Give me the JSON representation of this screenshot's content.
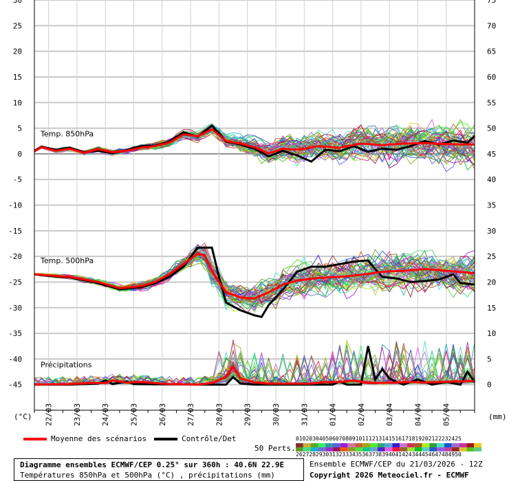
{
  "chart_data": {
    "type": "line",
    "title": "Diagramme ensembles ECMWF/CEP 0.25° sur 360h : 40.6N 22.9E",
    "subtitle": "Températures 850hPa et 500hPa (°C) , précipitations (mm)",
    "run_info": "Ensemble ECMWF/CEP du 21/03/2026 - 12Z",
    "copyright": "Copyright 2026 Meteociel.fr - ECMWF",
    "ylabel_left": "(°C)",
    "ylabel_right": "(mm)",
    "ylim_left": [
      -50,
      30
    ],
    "ylim_right": [
      -5,
      75
    ],
    "yticks_left": [
      30,
      25,
      20,
      15,
      10,
      5,
      0,
      -5,
      -10,
      -15,
      -20,
      -25,
      -30,
      -35,
      -40,
      -45
    ],
    "yticks_right": [
      75,
      70,
      65,
      60,
      55,
      50,
      45,
      40,
      35,
      30,
      25,
      20,
      15,
      10,
      5,
      0
    ],
    "date_labels": [
      "22/03",
      "23/03",
      "24/03",
      "25/03",
      "26/03",
      "27/03",
      "28/03",
      "29/03",
      "30/03",
      "31/03",
      "01/04",
      "02/04",
      "03/04",
      "04/04",
      "05/04"
    ],
    "x_start_hours": 0,
    "x_end_hours": 372,
    "step_hours": 6,
    "section_labels": [
      "Temp. 850hPa",
      "Temp. 500hPa",
      "Précipitations"
    ],
    "legend": {
      "mean": "Moyenne des scénarios",
      "control": "Contrôle/Det",
      "perts_label": "50 Perts.",
      "pert_numbers_top": "01020304050607080910111213141516171819202122232425",
      "pert_numbers_bottom": "26272829303132333435363738394041424344454647484950"
    },
    "series": [
      {
        "key": "t850",
        "axis": "left",
        "mean_keypoints": [
          [
            0,
            0.5
          ],
          [
            6,
            1.3
          ],
          [
            18,
            0.6
          ],
          [
            30,
            1.0
          ],
          [
            42,
            0.2
          ],
          [
            54,
            0.9
          ],
          [
            66,
            0.3
          ],
          [
            78,
            0.6
          ],
          [
            90,
            1.2
          ],
          [
            102,
            1.5
          ],
          [
            114,
            2.2
          ],
          [
            126,
            3.8
          ],
          [
            138,
            3.4
          ],
          [
            150,
            4.8
          ],
          [
            162,
            2.5
          ],
          [
            174,
            2.0
          ],
          [
            186,
            1.3
          ],
          [
            198,
            0.1
          ],
          [
            210,
            1.0
          ],
          [
            222,
            0.8
          ],
          [
            240,
            1.5
          ],
          [
            258,
            1.2
          ],
          [
            276,
            2.0
          ],
          [
            294,
            1.7
          ],
          [
            312,
            2.0
          ],
          [
            330,
            2.1
          ],
          [
            348,
            1.9
          ],
          [
            372,
            1.8
          ]
        ],
        "control_keypoints": [
          [
            0,
            0.6
          ],
          [
            6,
            1.4
          ],
          [
            18,
            0.8
          ],
          [
            30,
            1.2
          ],
          [
            42,
            0.3
          ],
          [
            54,
            0.6
          ],
          [
            66,
            0.1
          ],
          [
            78,
            0.7
          ],
          [
            90,
            1.5
          ],
          [
            102,
            1.6
          ],
          [
            114,
            2.4
          ],
          [
            126,
            4.2
          ],
          [
            138,
            3.3
          ],
          [
            150,
            5.5
          ],
          [
            162,
            2.4
          ],
          [
            174,
            1.8
          ],
          [
            186,
            1.0
          ],
          [
            198,
            -0.5
          ],
          [
            210,
            0.6
          ],
          [
            222,
            -0.3
          ],
          [
            234,
            -1.5
          ],
          [
            246,
            0.8
          ],
          [
            258,
            0.5
          ],
          [
            270,
            1.5
          ],
          [
            282,
            0.4
          ],
          [
            294,
            1.0
          ],
          [
            306,
            0.8
          ],
          [
            318,
            1.5
          ],
          [
            330,
            2.5
          ],
          [
            342,
            1.8
          ],
          [
            354,
            2.6
          ],
          [
            366,
            2.2
          ],
          [
            372,
            3.5
          ]
        ],
        "spread_keypoints": [
          [
            0,
            0.3
          ],
          [
            90,
            0.6
          ],
          [
            150,
            1.0
          ],
          [
            174,
            1.8
          ],
          [
            210,
            2.8
          ],
          [
            372,
            4.2
          ]
        ]
      },
      {
        "key": "t500",
        "axis": "left",
        "mean_keypoints": [
          [
            0,
            -23.5
          ],
          [
            12,
            -23.7
          ],
          [
            30,
            -24.0
          ],
          [
            54,
            -25.0
          ],
          [
            72,
            -26.2
          ],
          [
            90,
            -25.8
          ],
          [
            102,
            -25.0
          ],
          [
            114,
            -23.5
          ],
          [
            126,
            -21.5
          ],
          [
            138,
            -19.5
          ],
          [
            144,
            -19.8
          ],
          [
            150,
            -23.0
          ],
          [
            162,
            -27.0
          ],
          [
            174,
            -28.0
          ],
          [
            186,
            -28.2
          ],
          [
            198,
            -27.0
          ],
          [
            210,
            -25.5
          ],
          [
            222,
            -24.7
          ],
          [
            240,
            -24.2
          ],
          [
            258,
            -24.0
          ],
          [
            276,
            -23.6
          ],
          [
            294,
            -23.0
          ],
          [
            312,
            -22.8
          ],
          [
            330,
            -22.5
          ],
          [
            348,
            -22.8
          ],
          [
            372,
            -23.3
          ]
        ],
        "control_keypoints": [
          [
            0,
            -23.5
          ],
          [
            12,
            -23.8
          ],
          [
            30,
            -24.1
          ],
          [
            54,
            -25.2
          ],
          [
            72,
            -26.4
          ],
          [
            90,
            -26.0
          ],
          [
            102,
            -25.2
          ],
          [
            114,
            -24.0
          ],
          [
            126,
            -22.0
          ],
          [
            138,
            -18.3
          ],
          [
            150,
            -18.3
          ],
          [
            156,
            -24.0
          ],
          [
            162,
            -29.0
          ],
          [
            174,
            -30.5
          ],
          [
            186,
            -31.5
          ],
          [
            192,
            -31.8
          ],
          [
            198,
            -29.5
          ],
          [
            210,
            -26.5
          ],
          [
            222,
            -23.0
          ],
          [
            234,
            -22.0
          ],
          [
            246,
            -22.0
          ],
          [
            258,
            -21.5
          ],
          [
            270,
            -21.0
          ],
          [
            282,
            -20.8
          ],
          [
            288,
            -22.5
          ],
          [
            294,
            -24.0
          ],
          [
            306,
            -24.3
          ],
          [
            318,
            -25.0
          ],
          [
            330,
            -24.8
          ],
          [
            342,
            -24.5
          ],
          [
            354,
            -23.5
          ],
          [
            360,
            -25.2
          ],
          [
            372,
            -25.5
          ]
        ],
        "spread_keypoints": [
          [
            0,
            0.3
          ],
          [
            90,
            0.8
          ],
          [
            126,
            1.5
          ],
          [
            150,
            3.0
          ],
          [
            174,
            2.5
          ],
          [
            198,
            3.2
          ],
          [
            240,
            3.5
          ],
          [
            372,
            4.5
          ]
        ]
      },
      {
        "key": "precip",
        "axis": "right",
        "mean_keypoints": [
          [
            0,
            0.0
          ],
          [
            30,
            0.1
          ],
          [
            48,
            0.3
          ],
          [
            60,
            0.3
          ],
          [
            66,
            0.8
          ],
          [
            78,
            0.4
          ],
          [
            90,
            0.5
          ],
          [
            114,
            0.1
          ],
          [
            138,
            0.0
          ],
          [
            150,
            0.3
          ],
          [
            162,
            1.5
          ],
          [
            168,
            3.5
          ],
          [
            174,
            1.2
          ],
          [
            186,
            0.4
          ],
          [
            198,
            0.2
          ],
          [
            234,
            0.2
          ],
          [
            246,
            0.5
          ],
          [
            258,
            0.5
          ],
          [
            270,
            0.8
          ],
          [
            282,
            0.3
          ],
          [
            306,
            0.4
          ],
          [
            318,
            0.5
          ],
          [
            330,
            0.4
          ],
          [
            354,
            0.6
          ],
          [
            372,
            0.7
          ]
        ],
        "control_keypoints": [
          [
            0,
            0.0
          ],
          [
            30,
            0.0
          ],
          [
            54,
            0.2
          ],
          [
            60,
            0.8
          ],
          [
            66,
            0.1
          ],
          [
            78,
            0.6
          ],
          [
            84,
            0.1
          ],
          [
            138,
            0.0
          ],
          [
            162,
            0.0
          ],
          [
            168,
            1.5
          ],
          [
            174,
            0.2
          ],
          [
            186,
            0.0
          ],
          [
            234,
            0.0
          ],
          [
            252,
            0.0
          ],
          [
            258,
            0.6
          ],
          [
            264,
            0.0
          ],
          [
            276,
            0.0
          ],
          [
            282,
            7.5
          ],
          [
            288,
            1.0
          ],
          [
            294,
            3.0
          ],
          [
            300,
            1.2
          ],
          [
            306,
            0.5
          ],
          [
            312,
            0.0
          ],
          [
            324,
            1.0
          ],
          [
            336,
            0.0
          ],
          [
            348,
            0.5
          ],
          [
            360,
            0.0
          ],
          [
            366,
            2.5
          ],
          [
            372,
            0.5
          ]
        ]
      }
    ]
  }
}
